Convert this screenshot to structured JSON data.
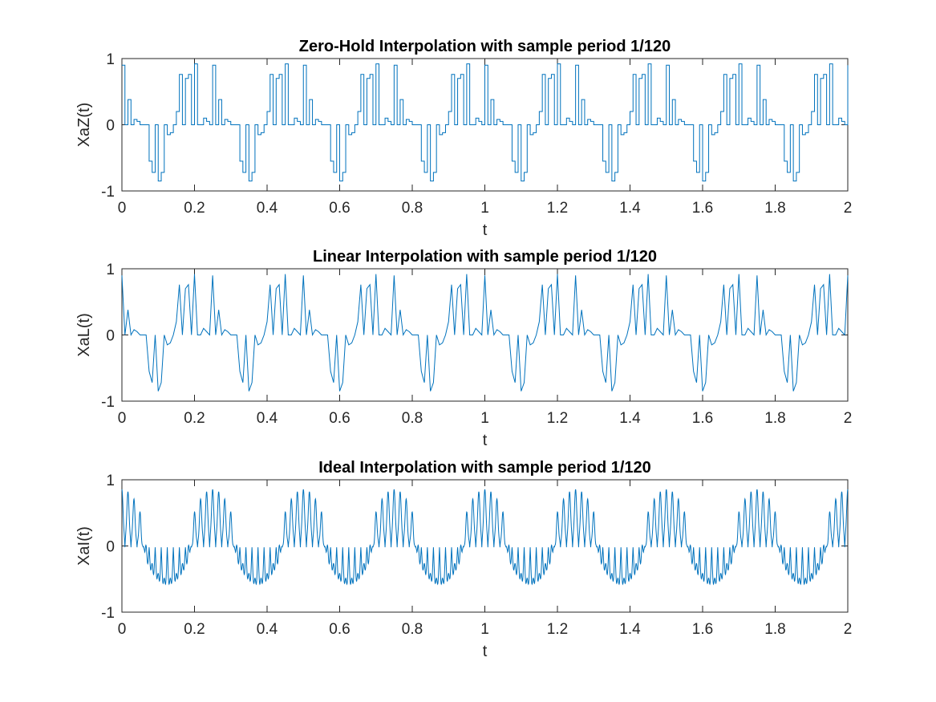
{
  "colors": {
    "series": "#0072bd",
    "axes": "#262626",
    "background": "#ffffff"
  },
  "chart_data": [
    {
      "type": "line",
      "style": "stairs",
      "title": "Zero-Hold Interpolation with sample period 1/120",
      "xlabel": "t",
      "ylabel": "XaZ(t)",
      "xlim": [
        0,
        2
      ],
      "ylim": [
        -1,
        1
      ],
      "xticks": [
        "0",
        "0.2",
        "0.4",
        "0.6",
        "0.8",
        "1",
        "1.2",
        "1.4",
        "1.6",
        "1.8",
        "2"
      ],
      "yticks": [
        "-1",
        "0",
        "1"
      ],
      "grid": false,
      "sample_period": "1/120",
      "signal_period": 0.25,
      "samples_per_period": 30,
      "period_samples": [
        0.9,
        0.0,
        0.38,
        0.0,
        0.08,
        0.05,
        0.0,
        0.0,
        0.0,
        -0.55,
        -0.72,
        0.0,
        -0.85,
        -0.72,
        0.0,
        -0.15,
        -0.12,
        0.0,
        0.2,
        0.76,
        0.0,
        0.7,
        0.76,
        0.0,
        0.92,
        0.0,
        0.0,
        0.1,
        0.05,
        0.0
      ]
    },
    {
      "type": "line",
      "style": "linear",
      "title": "Linear Interpolation with sample period 1/120",
      "xlabel": "t",
      "ylabel": "XaL(t)",
      "xlim": [
        0,
        2
      ],
      "ylim": [
        -1,
        1
      ],
      "xticks": [
        "0",
        "0.2",
        "0.4",
        "0.6",
        "0.8",
        "1",
        "1.2",
        "1.4",
        "1.6",
        "1.8",
        "2"
      ],
      "yticks": [
        "-1",
        "0",
        "1"
      ],
      "grid": false,
      "sample_period": "1/120",
      "signal_period": 0.25,
      "samples_per_period": 30,
      "period_samples": [
        0.9,
        0.0,
        0.38,
        0.0,
        0.08,
        0.05,
        0.0,
        0.0,
        0.0,
        -0.55,
        -0.72,
        0.0,
        -0.85,
        -0.72,
        0.0,
        -0.15,
        -0.12,
        0.0,
        0.2,
        0.76,
        0.0,
        0.7,
        0.76,
        0.0,
        0.92,
        0.0,
        0.0,
        0.1,
        0.05,
        0.0
      ]
    },
    {
      "type": "line",
      "style": "ideal",
      "title": "Ideal Interpolation with sample period 1/120",
      "xlabel": "t",
      "ylabel": "XaI(t)",
      "xlim": [
        0,
        2
      ],
      "ylim": [
        -1,
        1
      ],
      "xticks": [
        "0",
        "0.2",
        "0.4",
        "0.6",
        "0.8",
        "1",
        "1.2",
        "1.4",
        "1.6",
        "1.8",
        "2"
      ],
      "yticks": [
        "-1",
        "0",
        "1"
      ],
      "grid": false,
      "sample_period": "1/120",
      "signal_period": 0.25,
      "carrier_frequency": 60,
      "envelope_amplitude": 0.75,
      "ripple_amplitude": 0.2
    }
  ]
}
